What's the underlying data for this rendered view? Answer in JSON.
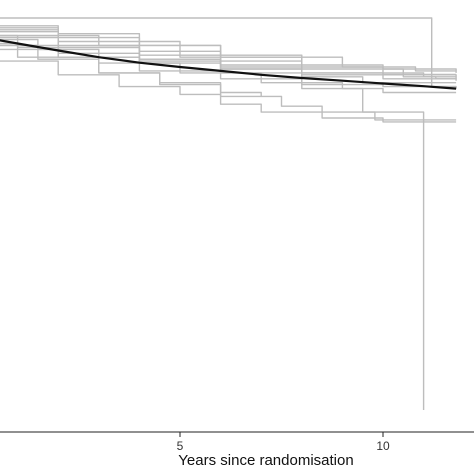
{
  "chart_data": {
    "type": "line",
    "xlabel": "Years since randomisation",
    "ylabel": "",
    "x_ticks": [
      "5",
      "10"
    ],
    "xlim": [
      -4.4,
      11.8
    ],
    "ylim": [
      0,
      1.0
    ],
    "grid": false,
    "colors": {
      "pooled": "#111111",
      "strata": "#bdbdbd",
      "axis": "#222222"
    },
    "series": [
      {
        "role": "pooled",
        "x": [
          -4.4,
          -4.0,
          -3.5,
          -3.0,
          -2.5,
          -2.0,
          -1.0,
          0,
          1,
          2,
          3,
          4,
          5,
          6,
          7,
          8,
          9,
          10,
          11,
          11.8
        ],
        "y": [
          1.0,
          1.0,
          1.0,
          0.999,
          0.993,
          0.985,
          0.97,
          0.953,
          0.935,
          0.917,
          0.9,
          0.886,
          0.875,
          0.865,
          0.855,
          0.847,
          0.84,
          0.833,
          0.826,
          0.82
        ]
      },
      {
        "role": "stratum",
        "x": [
          -4.4,
          -3.0,
          -1.5,
          0,
          2,
          4,
          6,
          8,
          10,
          11,
          11.8
        ],
        "y": [
          1.0,
          1.0,
          0.99,
          0.98,
          0.96,
          0.93,
          0.905,
          0.88,
          0.86,
          0.85,
          0.845
        ]
      },
      {
        "role": "stratum",
        "x": [
          -4.4,
          -3.0,
          -1.0,
          0.5,
          2,
          4,
          6,
          8,
          10,
          11.8
        ],
        "y": [
          1.0,
          0.995,
          0.96,
          0.92,
          0.9,
          0.885,
          0.87,
          0.86,
          0.855,
          0.85
        ]
      },
      {
        "role": "stratum",
        "x": [
          -4.4,
          -2.5,
          -1.0,
          0.5,
          2,
          4,
          6,
          8,
          10,
          11.8
        ],
        "y": [
          1.0,
          0.99,
          0.965,
          0.93,
          0.91,
          0.89,
          0.87,
          0.86,
          0.856,
          0.856
        ]
      },
      {
        "role": "stratum",
        "x": [
          -4.4,
          -2.0,
          0,
          2,
          4,
          6,
          8,
          10,
          11.8
        ],
        "y": [
          1.0,
          0.985,
          0.95,
          0.925,
          0.905,
          0.89,
          0.875,
          0.87,
          0.865
        ]
      },
      {
        "role": "stratum",
        "x": [
          -4.4,
          -2.0,
          -0.5,
          1,
          2,
          4,
          6,
          8,
          10,
          11.8
        ],
        "y": [
          1.0,
          0.985,
          0.955,
          0.925,
          0.9,
          0.865,
          0.845,
          0.83,
          0.825,
          0.82
        ]
      },
      {
        "role": "stratum",
        "x": [
          -4.4,
          -3.0,
          -1.5,
          0,
          1.5,
          3,
          5,
          7,
          9,
          10,
          11,
          11.8
        ],
        "y": [
          1.0,
          0.995,
          0.975,
          0.945,
          0.92,
          0.885,
          0.86,
          0.835,
          0.82,
          0.81,
          0.81,
          0.81
        ]
      },
      {
        "role": "stratum",
        "x": [
          -4.4,
          -1.5,
          0,
          2,
          4,
          6,
          8,
          10,
          11.8
        ],
        "y": [
          1.0,
          0.985,
          0.955,
          0.925,
          0.895,
          0.875,
          0.855,
          0.845,
          0.84
        ]
      },
      {
        "role": "stratum",
        "x": [
          -4.4,
          -2.0,
          -0.5,
          1,
          3,
          4.5,
          6,
          7
        ],
        "y": [
          1.0,
          0.98,
          0.935,
          0.9,
          0.86,
          0.835,
          0.81,
          0.8
        ]
      },
      {
        "role": "stratum",
        "x": [
          -4.4,
          -2.0,
          -0.5,
          0.5,
          2,
          3.5,
          5,
          6,
          7,
          8.5,
          10,
          11.8
        ],
        "y": [
          1.0,
          0.975,
          0.93,
          0.89,
          0.855,
          0.825,
          0.805,
          0.78,
          0.76,
          0.745,
          0.735,
          0.735
        ]
      },
      {
        "role": "stratum",
        "x": [
          -4.4,
          -1.5,
          0,
          1.5,
          3,
          4.5,
          6,
          7.5,
          8.5,
          9.8,
          10.5,
          11.8
        ],
        "y": [
          1.0,
          0.97,
          0.93,
          0.895,
          0.86,
          0.83,
          0.8,
          0.775,
          0.76,
          0.74,
          0.74,
          0.74
        ]
      },
      {
        "role": "stratum",
        "x": [
          -4.4,
          0,
          2,
          4,
          6,
          8,
          9.5,
          10.8,
          11.8
        ],
        "y": [
          1.0,
          0.975,
          0.95,
          0.915,
          0.88,
          0.85,
          0.835,
          0.835,
          0.835
        ]
      },
      {
        "role": "stratum",
        "x": [
          -4.4,
          -2.0,
          0.5,
          3,
          6,
          9,
          10.8,
          11.8
        ],
        "y": [
          1.0,
          0.98,
          0.955,
          0.93,
          0.9,
          0.875,
          0.865,
          0.86
        ]
      },
      {
        "role": "stratum",
        "x": [
          -4.4,
          -3.0,
          0,
          3,
          6,
          9,
          11.2,
          11.2,
          11.8
        ],
        "y": [
          1.0,
          1.0,
          1.0,
          1.0,
          1.0,
          1.0,
          1.0,
          0.825,
          0.825
        ]
      },
      {
        "role": "stratum",
        "x": [
          -4.4,
          -1.0,
          2,
          5,
          8,
          10.5,
          11.3,
          11.8
        ],
        "y": [
          0.99,
          0.97,
          0.94,
          0.9,
          0.87,
          0.85,
          0.845,
          0.845
        ]
      },
      {
        "role": "stratum",
        "x": [
          -4.4,
          -2.0,
          0,
          2,
          4,
          6,
          8,
          9.5,
          11.0,
          11.0
        ],
        "y": [
          1.0,
          0.99,
          0.965,
          0.93,
          0.895,
          0.86,
          0.82,
          0.76,
          0.76,
          0.0
        ]
      }
    ]
  }
}
